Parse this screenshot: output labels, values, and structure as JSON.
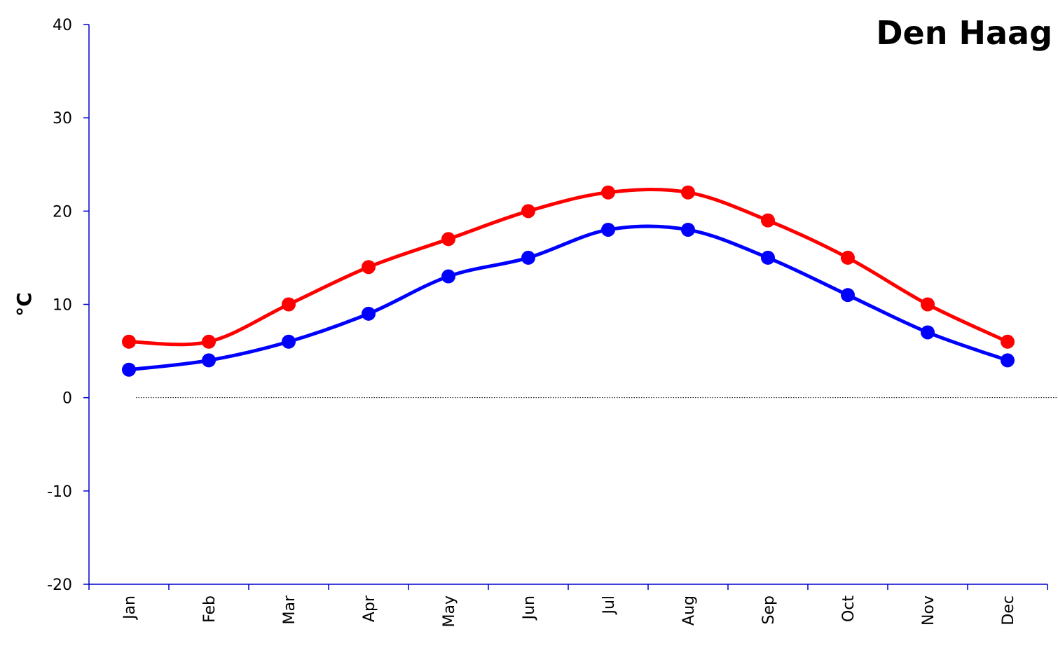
{
  "chart_data": {
    "type": "line",
    "title": "Den Haag",
    "xlabel": "",
    "ylabel": "°C",
    "categories": [
      "Jan",
      "Feb",
      "Mar",
      "Apr",
      "May",
      "Jun",
      "Jul",
      "Aug",
      "Sep",
      "Oct",
      "Nov",
      "Dec"
    ],
    "ylim": [
      -20,
      40
    ],
    "yticks": [
      40,
      30,
      20,
      10,
      0,
      -10,
      -20
    ],
    "grid": false,
    "series": [
      {
        "color": "#ff0000",
        "values": [
          6,
          6,
          10,
          14,
          17,
          20,
          22,
          22,
          19,
          15,
          10,
          6
        ]
      },
      {
        "color": "#0000ff",
        "values": [
          3,
          4,
          6,
          9,
          13,
          15,
          18,
          18,
          15,
          11,
          7,
          4
        ]
      }
    ],
    "zero_line": {
      "style": "dotted",
      "color": "#000000"
    },
    "axis_color": "#0000cc"
  }
}
